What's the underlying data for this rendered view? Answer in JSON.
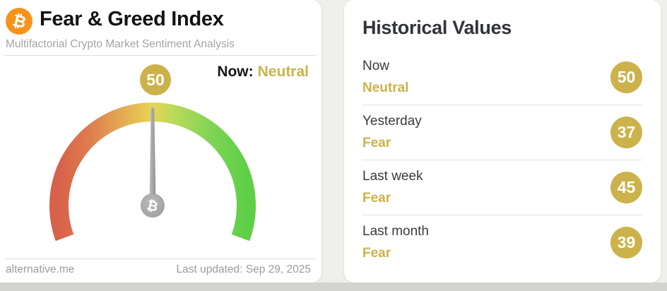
{
  "colors": {
    "accent_gold": "#ccb24a",
    "bitcoin_orange": "#f7931a",
    "needle_gray": "#a6a6a6",
    "gauge_stops": [
      "#d7614a",
      "#df8150",
      "#e5b554",
      "#e6d557",
      "#b8da59",
      "#7ed455",
      "#5ecf47"
    ]
  },
  "header": {
    "bitcoin_symbol": "₿",
    "title": "Fear & Greed Index",
    "subtitle": "Multifactorial Crypto Market Sentiment Analysis"
  },
  "gauge": {
    "now_label": "Now:",
    "now_classification": "Neutral",
    "value": 50,
    "min": 0,
    "max": 100,
    "hub_symbol": "₿"
  },
  "footer": {
    "brand": "alternative.me",
    "last_updated": "Last updated: Sep 29, 2025"
  },
  "historical": {
    "title": "Historical Values",
    "rows": [
      {
        "label": "Now",
        "classification": "Neutral",
        "value": 50
      },
      {
        "label": "Yesterday",
        "classification": "Fear",
        "value": 37
      },
      {
        "label": "Last week",
        "classification": "Fear",
        "value": 45
      },
      {
        "label": "Last month",
        "classification": "Fear",
        "value": 39
      }
    ]
  },
  "chart_data": {
    "type": "gauge",
    "title": "Fear & Greed Index",
    "subtitle": "Multifactorial Crypto Market Sentiment Analysis",
    "value": 50,
    "classification": "Neutral",
    "range": [
      0,
      100
    ],
    "arc_sweep_degrees": 220,
    "color_scale_low_to_high": [
      "#d7614a",
      "#e5b554",
      "#e6d557",
      "#b8da59",
      "#5ecf47"
    ],
    "history": [
      {
        "period": "Now",
        "classification": "Neutral",
        "value": 50
      },
      {
        "period": "Yesterday",
        "classification": "Fear",
        "value": 37
      },
      {
        "period": "Last week",
        "classification": "Fear",
        "value": 45
      },
      {
        "period": "Last month",
        "classification": "Fear",
        "value": 39
      }
    ],
    "last_updated": "Sep 29, 2025",
    "source": "alternative.me"
  }
}
